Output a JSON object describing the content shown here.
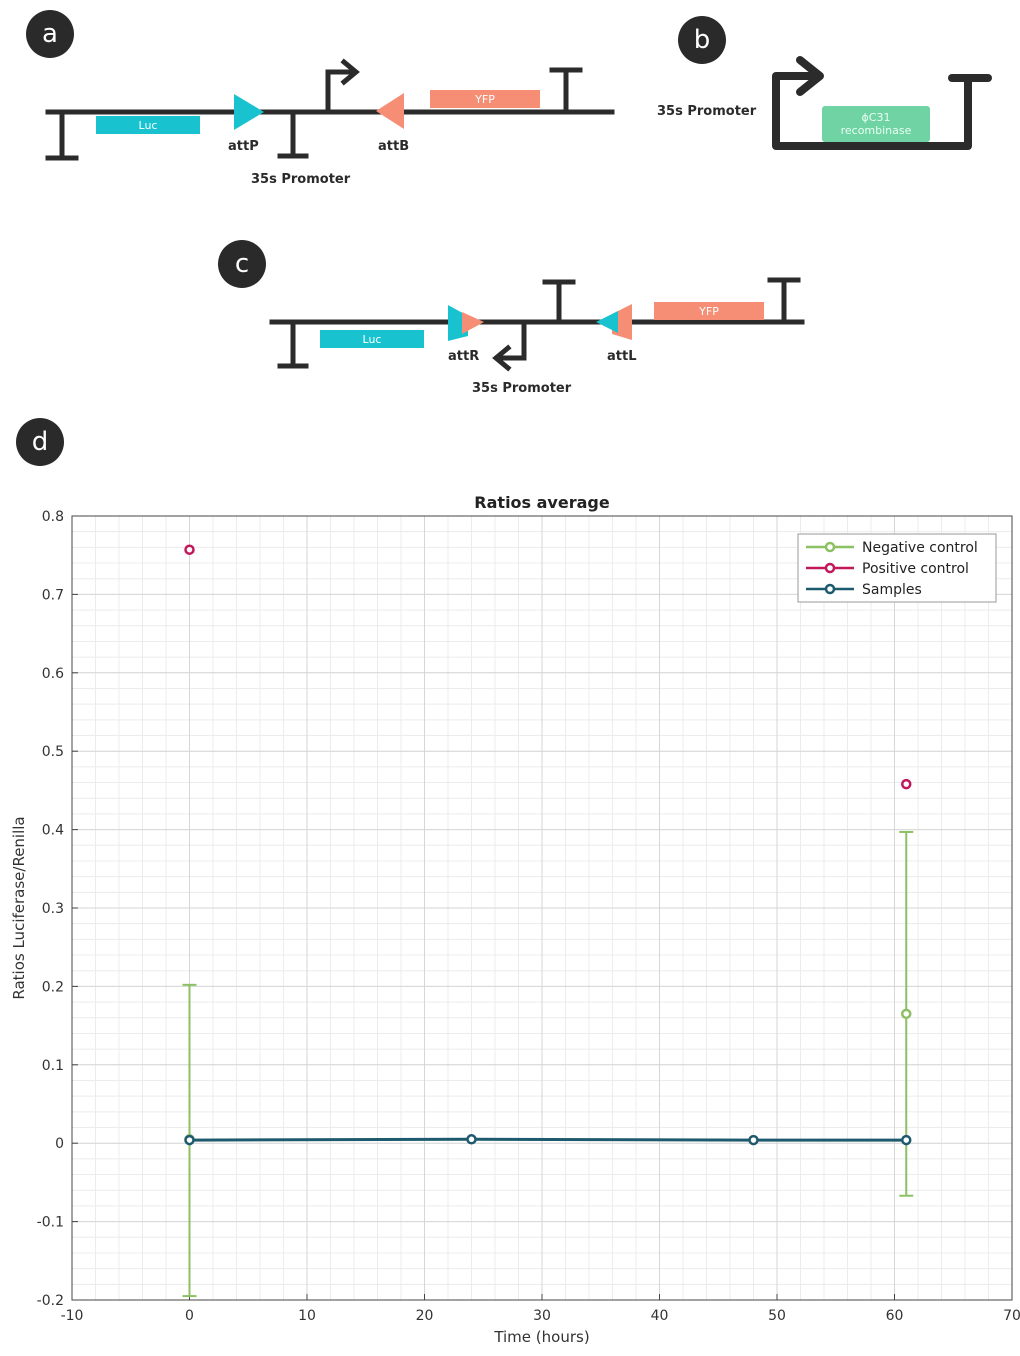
{
  "panels": {
    "a": {
      "badge": "a",
      "luc": "Luc",
      "yfp": "YFP",
      "attP": "attP",
      "attB": "attB",
      "promoter": "35s Promoter"
    },
    "b": {
      "badge": "b",
      "promoter": "35s Promoter",
      "gene_line1": "ϕC31",
      "gene_line2": "recombinase"
    },
    "c": {
      "badge": "c",
      "luc": "Luc",
      "yfp": "YFP",
      "attR": "attR",
      "attL": "attL",
      "promoter": "35s Promoter"
    },
    "d": {
      "badge": "d"
    }
  },
  "colors": {
    "backbone": "#2b2b2b",
    "luc": "#18c3cf",
    "yfp": "#f68e76",
    "recombinase": "#6fd3a3",
    "negative": "#8cc063",
    "positive": "#c2185b",
    "samples": "#1d5a6e"
  },
  "chart_data": {
    "type": "line",
    "title": "Ratios average",
    "xlabel": "Time (hours)",
    "ylabel": "Ratios Luciferase/Renilla",
    "xlim": [
      -10,
      70
    ],
    "ylim": [
      -0.2,
      0.8
    ],
    "xticks": [
      -10,
      0,
      10,
      20,
      30,
      40,
      50,
      60,
      70
    ],
    "xtick_labels": [
      "-10",
      "0",
      "10",
      "20",
      "30",
      "40",
      "50",
      "60",
      "70"
    ],
    "yticks": [
      -0.2,
      -0.1,
      0,
      0.1,
      0.2,
      0.3,
      0.4,
      0.5,
      0.6,
      0.7,
      0.8
    ],
    "ytick_labels": [
      "-0.2",
      "-0.1",
      "0",
      "0.1",
      "0.2",
      "0.3",
      "0.4",
      "0.5",
      "0.6",
      "0.7",
      "0.8"
    ],
    "grid": true,
    "legend_position": "top-right",
    "series": [
      {
        "name": "Negative control",
        "color": "#8cc063",
        "x": [
          0,
          61
        ],
        "y": [
          0.005,
          0.165
        ],
        "err_low": [
          -0.195,
          -0.067
        ],
        "err_high": [
          0.202,
          0.397
        ],
        "connect": false
      },
      {
        "name": "Positive control",
        "color": "#c2185b",
        "x": [
          0,
          61
        ],
        "y": [
          0.757,
          0.458
        ],
        "connect": false
      },
      {
        "name": "Samples",
        "color": "#1d5a6e",
        "x": [
          0,
          24,
          48,
          61
        ],
        "y": [
          0.004,
          0.005,
          0.004,
          0.004
        ],
        "connect": true
      }
    ]
  }
}
